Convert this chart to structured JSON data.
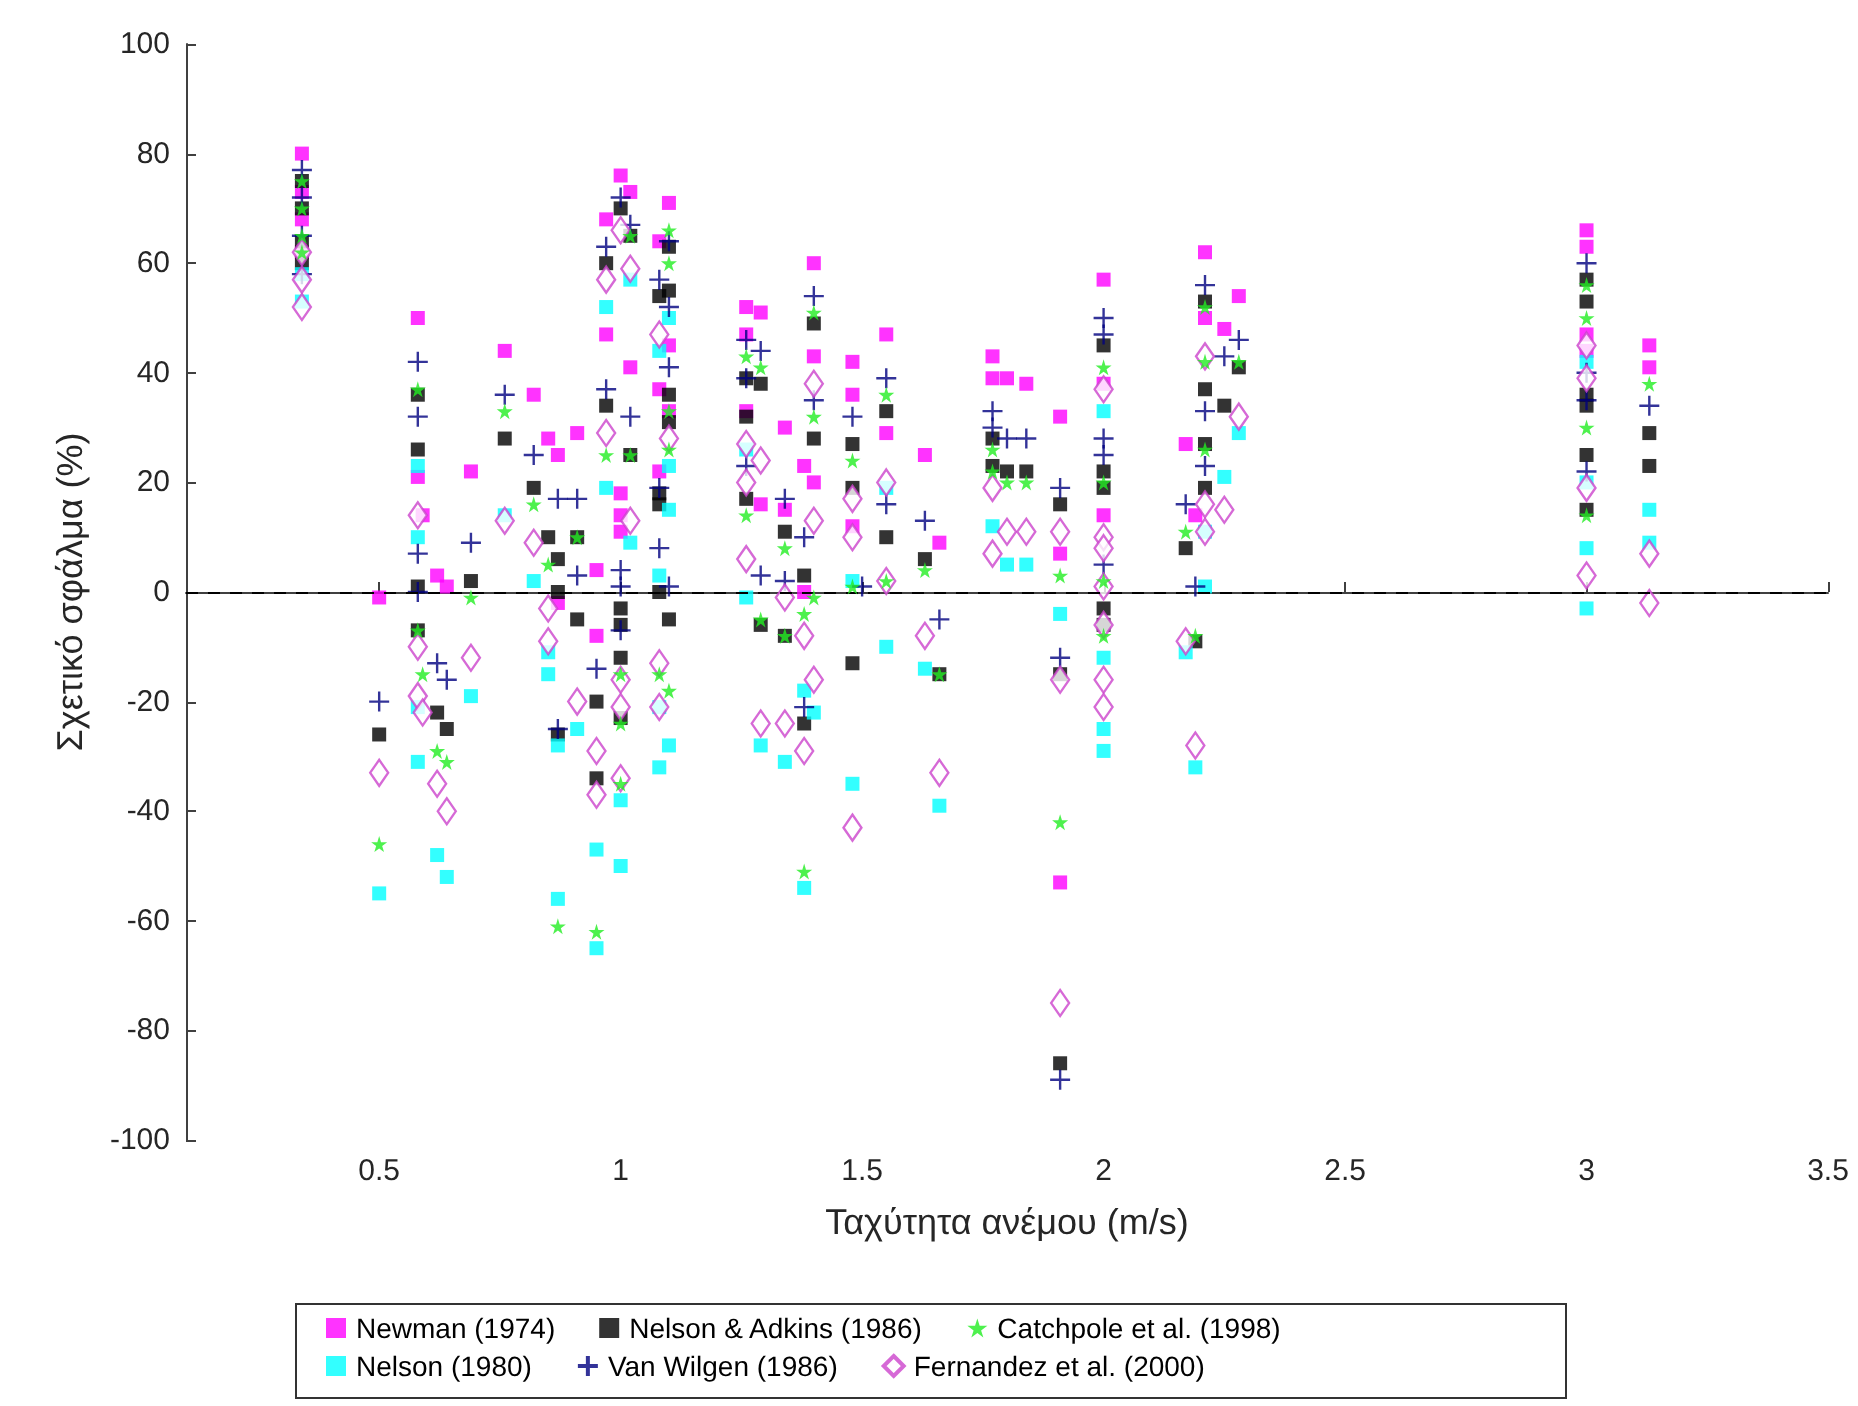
{
  "chart_data": {
    "type": "scatter",
    "xlabel": "Ταχύτητα ανέμου (m/s)",
    "ylabel": "Σχετικό σφάλμα (%)",
    "xlim": [
      0.1,
      3.5
    ],
    "xticks": [
      0.5,
      1,
      1.5,
      2,
      2.5,
      3,
      3.5
    ],
    "ylim": [
      -100,
      100
    ],
    "yticks": [
      -100,
      -80,
      -60,
      -40,
      -20,
      0,
      20,
      40,
      60,
      80,
      100
    ],
    "grid": false,
    "legend": "bottom",
    "ref_lines": [
      {
        "axis": "y",
        "value": 0,
        "line_style": "dashed",
        "color": "#000000"
      }
    ],
    "series": [
      {
        "name": "Newman (1974)",
        "color": "#ff00ff",
        "marker": "square",
        "x": [
          0.34,
          0.34,
          0.34,
          0.34,
          0.5,
          0.58,
          0.58,
          0.59,
          0.62,
          0.64,
          0.69,
          0.76,
          0.82,
          0.85,
          0.87,
          0.87,
          0.91,
          0.95,
          0.95,
          0.97,
          0.97,
          1.0,
          1.0,
          1.0,
          1.0,
          1.02,
          1.02,
          1.08,
          1.08,
          1.08,
          1.1,
          1.1,
          1.1,
          1.26,
          1.26,
          1.26,
          1.29,
          1.29,
          1.34,
          1.34,
          1.38,
          1.38,
          1.4,
          1.4,
          1.4,
          1.48,
          1.48,
          1.48,
          1.55,
          1.55,
          1.63,
          1.66,
          1.77,
          1.77,
          1.8,
          1.84,
          1.91,
          1.91,
          1.91,
          2.0,
          2.0,
          2.0,
          2.17,
          2.19,
          2.21,
          2.21,
          2.25,
          2.28,
          3.0,
          3.0,
          3.0,
          3.0,
          3.13,
          3.13
        ],
        "values": [
          80,
          73,
          68,
          62,
          -1,
          50,
          21,
          14,
          3,
          1,
          22,
          44,
          36,
          28,
          25,
          -2,
          29,
          4,
          -8,
          68,
          47,
          76,
          18,
          14,
          11,
          73,
          41,
          64,
          37,
          22,
          71,
          45,
          33,
          52,
          47,
          33,
          51,
          16,
          30,
          15,
          23,
          0,
          60,
          43,
          20,
          42,
          36,
          12,
          47,
          29,
          25,
          9,
          43,
          39,
          39,
          38,
          32,
          7,
          -53,
          57,
          38,
          14,
          27,
          14,
          62,
          50,
          48,
          54,
          66,
          63,
          47,
          44,
          45,
          41
        ]
      },
      {
        "name": "Nelson & Adkins (1986)",
        "color": "#000000",
        "marker": "square",
        "x": [
          0.34,
          0.34,
          0.34,
          0.34,
          0.5,
          0.58,
          0.58,
          0.58,
          0.58,
          0.62,
          0.64,
          0.69,
          0.76,
          0.82,
          0.85,
          0.87,
          0.87,
          0.87,
          0.91,
          0.91,
          0.95,
          0.95,
          0.97,
          0.97,
          1.0,
          1.0,
          1.0,
          1.0,
          1.0,
          1.02,
          1.02,
          1.08,
          1.08,
          1.08,
          1.08,
          1.1,
          1.1,
          1.1,
          1.1,
          1.1,
          1.26,
          1.26,
          1.26,
          1.29,
          1.29,
          1.34,
          1.34,
          1.38,
          1.38,
          1.4,
          1.4,
          1.48,
          1.48,
          1.48,
          1.55,
          1.55,
          1.63,
          1.66,
          1.77,
          1.77,
          1.8,
          1.84,
          1.91,
          1.91,
          1.91,
          2.0,
          2.0,
          2.0,
          2.0,
          2.0,
          2.17,
          2.19,
          2.21,
          2.21,
          2.21,
          2.21,
          2.25,
          2.28,
          3.0,
          3.0,
          3.0,
          3.0,
          3.0,
          3.0,
          3.13,
          3.13
        ],
        "values": [
          75,
          70,
          64,
          60,
          -26,
          36,
          26,
          1,
          -7,
          -22,
          -25,
          2,
          28,
          19,
          10,
          6,
          0,
          -26,
          10,
          -5,
          -20,
          -34,
          60,
          34,
          70,
          -3,
          -6,
          -12,
          -23,
          65,
          25,
          54,
          18,
          16,
          0,
          63,
          55,
          36,
          31,
          -5,
          39,
          32,
          17,
          38,
          -6,
          11,
          -8,
          3,
          -24,
          49,
          28,
          27,
          19,
          -13,
          33,
          10,
          6,
          -15,
          28,
          23,
          22,
          22,
          16,
          -15,
          -86,
          45,
          22,
          19,
          -3,
          -6,
          8,
          -9,
          53,
          37,
          27,
          19,
          34,
          41,
          57,
          53,
          36,
          34,
          25,
          15,
          29,
          23
        ]
      },
      {
        "name": "Catchpole et al. (1998)",
        "color": "#22ee22",
        "marker": "star",
        "x": [
          0.34,
          0.34,
          0.34,
          0.34,
          0.5,
          0.58,
          0.58,
          0.59,
          0.62,
          0.64,
          0.69,
          0.76,
          0.82,
          0.85,
          0.87,
          0.91,
          0.95,
          0.97,
          1.0,
          1.0,
          1.0,
          1.02,
          1.02,
          1.08,
          1.1,
          1.1,
          1.1,
          1.1,
          1.1,
          1.26,
          1.26,
          1.29,
          1.29,
          1.34,
          1.34,
          1.38,
          1.38,
          1.4,
          1.4,
          1.4,
          1.48,
          1.48,
          1.55,
          1.55,
          1.63,
          1.66,
          1.77,
          1.77,
          1.8,
          1.84,
          1.91,
          1.91,
          2.0,
          2.0,
          2.0,
          2.0,
          2.17,
          2.19,
          2.21,
          2.21,
          2.21,
          2.28,
          3.0,
          3.0,
          3.0,
          3.0,
          3.13
        ],
        "values": [
          75,
          70,
          65,
          62,
          -46,
          37,
          -7,
          -15,
          -29,
          -31,
          -1,
          33,
          16,
          5,
          -61,
          10,
          -62,
          25,
          -15,
          -24,
          -35,
          65,
          25,
          -15,
          66,
          60,
          33,
          26,
          -18,
          43,
          14,
          41,
          -5,
          8,
          -8,
          -4,
          -51,
          51,
          32,
          -1,
          24,
          1,
          36,
          2,
          4,
          -15,
          26,
          22,
          20,
          20,
          3,
          -42,
          41,
          20,
          2,
          -8,
          11,
          -8,
          52,
          42,
          26,
          42,
          56,
          50,
          30,
          14,
          38
        ]
      },
      {
        "name": "Nelson (1980)",
        "color": "#00ffff",
        "marker": "square",
        "x": [
          0.34,
          0.34,
          0.5,
          0.58,
          0.58,
          0.58,
          0.58,
          0.62,
          0.64,
          0.69,
          0.76,
          0.82,
          0.85,
          0.85,
          0.87,
          0.87,
          0.91,
          0.95,
          0.95,
          0.97,
          0.97,
          1.0,
          1.0,
          1.02,
          1.02,
          1.08,
          1.08,
          1.08,
          1.08,
          1.1,
          1.1,
          1.1,
          1.1,
          1.26,
          1.26,
          1.29,
          1.34,
          1.38,
          1.38,
          1.4,
          1.48,
          1.48,
          1.55,
          1.55,
          1.63,
          1.66,
          1.77,
          1.8,
          1.84,
          1.91,
          2.0,
          2.0,
          2.0,
          2.0,
          2.17,
          2.19,
          2.21,
          2.21,
          2.25,
          2.28,
          3.0,
          3.0,
          3.0,
          3.0,
          3.13,
          3.13
        ],
        "values": [
          53,
          58,
          -55,
          23,
          10,
          -21,
          -31,
          -48,
          -52,
          -19,
          14,
          2,
          -11,
          -15,
          -28,
          -56,
          -25,
          -47,
          -65,
          52,
          19,
          -38,
          -50,
          57,
          9,
          44,
          3,
          -21,
          -32,
          50,
          23,
          15,
          -28,
          26,
          -1,
          -28,
          -31,
          -18,
          -54,
          -22,
          2,
          -35,
          19,
          -10,
          -14,
          -39,
          12,
          5,
          5,
          -4,
          33,
          -12,
          -25,
          -29,
          -11,
          -32,
          11,
          1,
          21,
          29,
          42,
          20,
          8,
          -3,
          15,
          9
        ]
      },
      {
        "name": "Van Wilgen (1986)",
        "color": "#000080",
        "marker": "cross",
        "x": [
          0.34,
          0.34,
          0.34,
          0.34,
          0.5,
          0.58,
          0.58,
          0.58,
          0.58,
          0.62,
          0.64,
          0.69,
          0.76,
          0.82,
          0.87,
          0.87,
          0.91,
          0.91,
          0.95,
          0.97,
          0.97,
          1.0,
          1.0,
          1.0,
          1.0,
          1.02,
          1.02,
          1.08,
          1.08,
          1.08,
          1.1,
          1.1,
          1.1,
          1.1,
          1.26,
          1.26,
          1.26,
          1.29,
          1.29,
          1.34,
          1.34,
          1.38,
          1.38,
          1.4,
          1.4,
          1.48,
          1.5,
          1.55,
          1.55,
          1.63,
          1.66,
          1.77,
          1.77,
          1.8,
          1.84,
          1.91,
          1.91,
          1.91,
          2.0,
          2.0,
          2.0,
          2.0,
          2.0,
          2.17,
          2.19,
          2.21,
          2.21,
          2.21,
          2.25,
          2.28,
          3.0,
          3.0,
          3.0,
          3.0,
          3.13
        ],
        "values": [
          77,
          72,
          65,
          58,
          -20,
          42,
          32,
          7,
          0,
          -13,
          -16,
          9,
          36,
          25,
          17,
          -25,
          17,
          3,
          -14,
          63,
          37,
          72,
          4,
          1,
          -7,
          67,
          32,
          57,
          19,
          8,
          64,
          52,
          41,
          1,
          46,
          39,
          23,
          44,
          3,
          17,
          2,
          10,
          -21,
          54,
          35,
          32,
          1,
          39,
          16,
          13,
          -5,
          33,
          30,
          28,
          28,
          19,
          -12,
          -89,
          50,
          47,
          28,
          25,
          5,
          16,
          1,
          56,
          33,
          23,
          43,
          46,
          60,
          40,
          35,
          22,
          34
        ]
      },
      {
        "name": "Fernandez et al. (2000)",
        "color": "#cc44cc",
        "marker": "diamond",
        "x": [
          0.34,
          0.34,
          0.34,
          0.5,
          0.58,
          0.58,
          0.58,
          0.59,
          0.62,
          0.64,
          0.69,
          0.76,
          0.82,
          0.85,
          0.85,
          0.91,
          0.95,
          0.95,
          0.97,
          0.97,
          1.0,
          1.0,
          1.0,
          1.0,
          1.02,
          1.02,
          1.08,
          1.08,
          1.08,
          1.1,
          1.26,
          1.26,
          1.26,
          1.29,
          1.29,
          1.34,
          1.34,
          1.38,
          1.38,
          1.4,
          1.4,
          1.4,
          1.48,
          1.48,
          1.48,
          1.55,
          1.55,
          1.63,
          1.66,
          1.77,
          1.77,
          1.8,
          1.84,
          1.91,
          1.91,
          1.91,
          2.0,
          2.0,
          2.0,
          2.0,
          2.0,
          2.0,
          2.0,
          2.17,
          2.19,
          2.21,
          2.21,
          2.21,
          2.25,
          2.28,
          3.0,
          3.0,
          3.0,
          3.0,
          3.13,
          3.13
        ],
        "values": [
          62,
          57,
          52,
          -33,
          14,
          -10,
          -19,
          -22,
          -35,
          -40,
          -12,
          13,
          9,
          -3,
          -9,
          -20,
          -29,
          -37,
          57,
          29,
          66,
          -16,
          -21,
          -34,
          59,
          13,
          47,
          -13,
          -21,
          28,
          27,
          20,
          6,
          24,
          -24,
          -1,
          -24,
          -8,
          -29,
          38,
          13,
          -16,
          17,
          10,
          -43,
          20,
          2,
          -8,
          -33,
          19,
          7,
          11,
          11,
          11,
          -16,
          -75,
          37,
          10,
          8,
          1,
          -6,
          -16,
          -21,
          -9,
          -28,
          43,
          16,
          11,
          15,
          32,
          45,
          39,
          19,
          3,
          7,
          -2
        ]
      }
    ]
  }
}
